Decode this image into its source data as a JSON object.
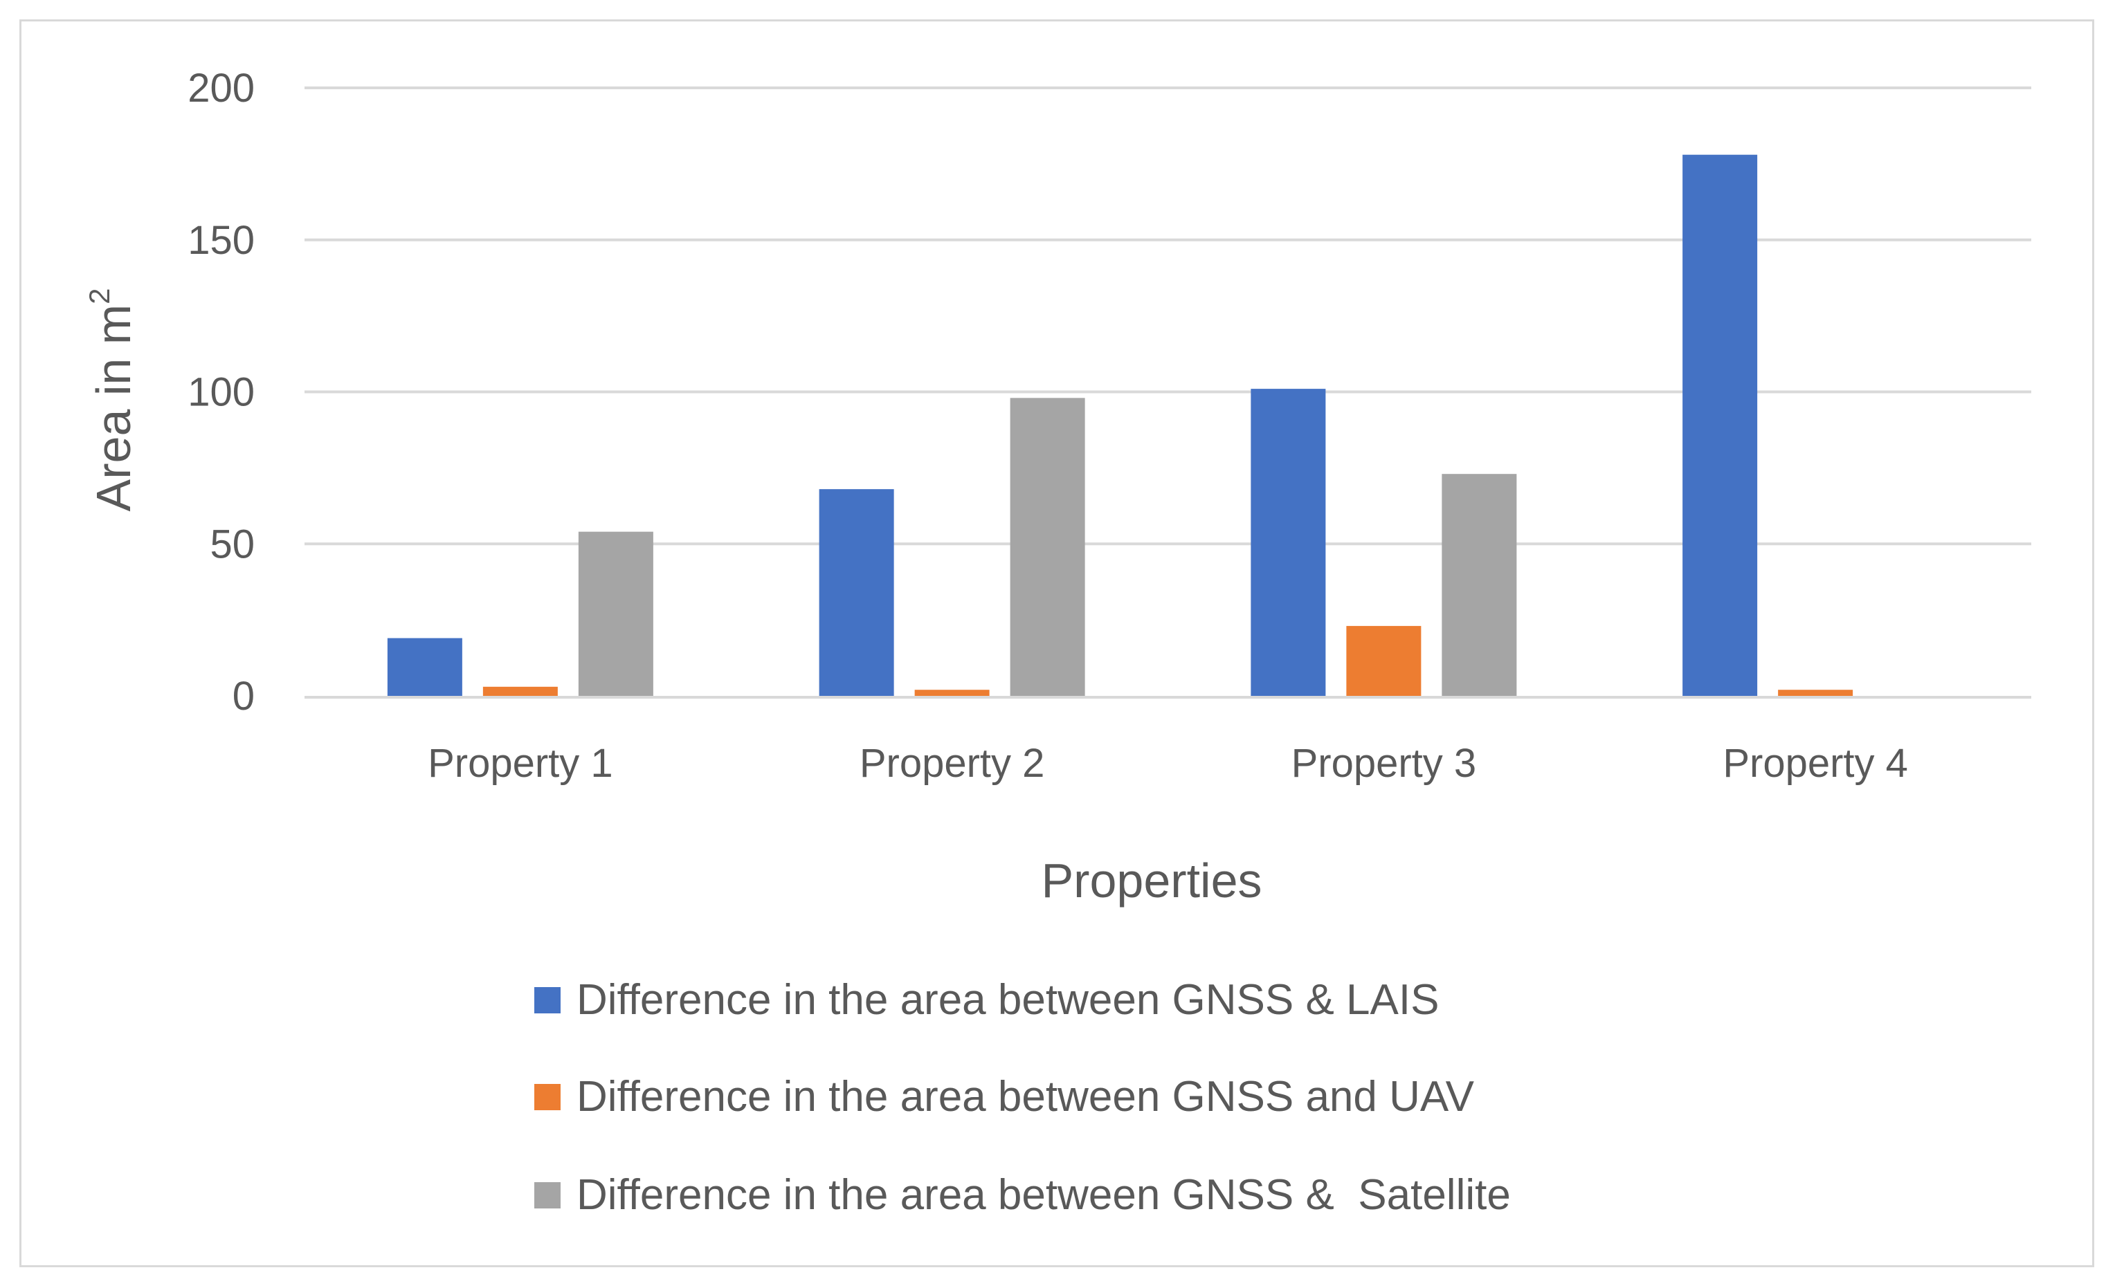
{
  "chart_data": {
    "type": "bar",
    "title": "",
    "xlabel": "Properties",
    "ylabel": "Area in m",
    "ylabel_superscript": "2",
    "categories": [
      "Property 1",
      "Property 2",
      "Property 3",
      "Property 4"
    ],
    "ylim": [
      0,
      200
    ],
    "yticks": [
      0,
      50,
      100,
      150,
      200
    ],
    "grid": true,
    "legend_position": "bottom",
    "series": [
      {
        "name": "Difference in the area between GNSS & LAIS",
        "color": "#4472c4",
        "values": [
          19,
          68,
          101,
          178
        ]
      },
      {
        "name": "Difference in the area between GNSS and UAV",
        "color": "#ed7d31",
        "values": [
          3,
          2,
          23,
          2
        ]
      },
      {
        "name": "Difference in the area between GNSS &  Satellite",
        "color": "#a5a5a5",
        "values": [
          54,
          98,
          73,
          0
        ]
      }
    ]
  }
}
